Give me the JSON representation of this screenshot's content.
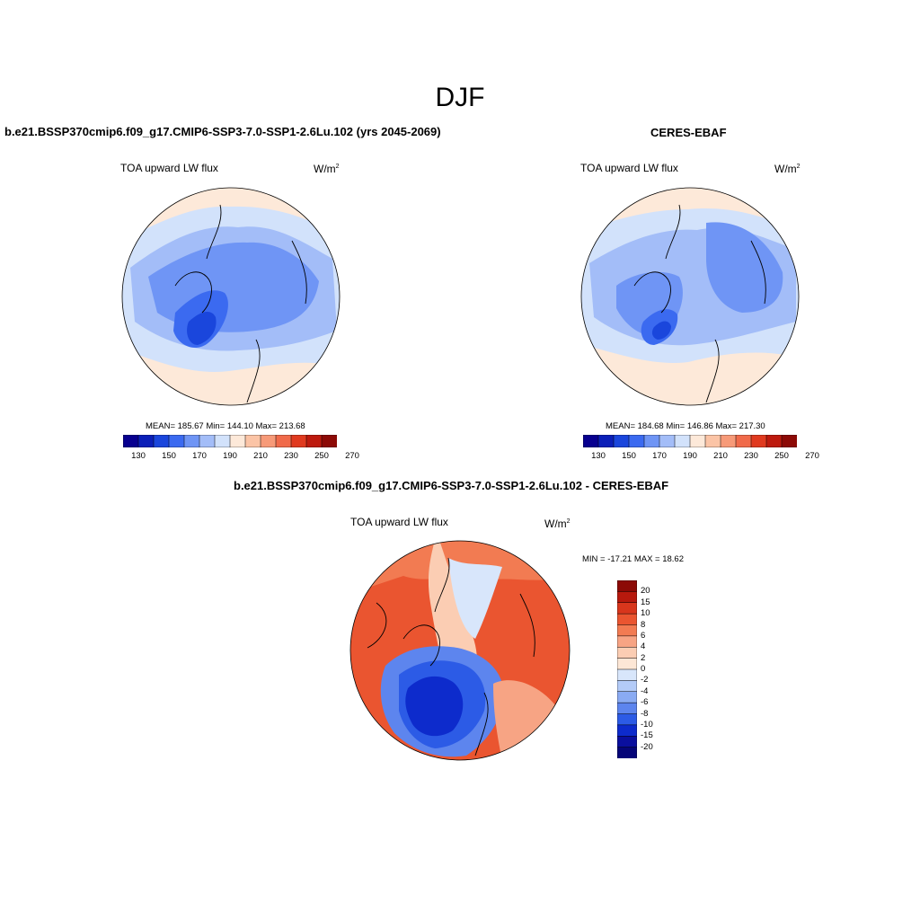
{
  "figure": {
    "title": "DJF"
  },
  "panels": [
    {
      "title": "b.e21.BSSP370cmip6.f09_g17.CMIP6-SSP3-7.0-SSP1-2.6Lu.102 (yrs 2045-2069)",
      "variable": "TOA upward LW flux",
      "units_base": "W/m",
      "units_sup": "2",
      "stats": "MEAN= 185.67  Min= 144.10  Max= 213.68",
      "colorbar_ticks": [
        "130",
        "150",
        "170",
        "190",
        "210",
        "230",
        "250",
        "270"
      ]
    },
    {
      "title": "CERES-EBAF",
      "variable": "TOA upward LW flux",
      "units_base": "W/m",
      "units_sup": "2",
      "stats": "MEAN= 184.68  Min= 146.86  Max= 217.30",
      "colorbar_ticks": [
        "130",
        "150",
        "170",
        "190",
        "210",
        "230",
        "250",
        "270"
      ]
    },
    {
      "title": "b.e21.BSSP370cmip6.f09_g17.CMIP6-SSP3-7.0-SSP1-2.6Lu.102 - CERES-EBAF",
      "variable": "TOA upward LW flux",
      "units_base": "W/m",
      "units_sup": "2",
      "stats": "MIN = -17.21 MAX =  18.62",
      "colorbar_ticks": [
        "20",
        "15",
        "10",
        "8",
        "6",
        "4",
        "2",
        "0",
        "-2",
        "-4",
        "-6",
        "-8",
        "-10",
        "-15",
        "-20"
      ]
    }
  ],
  "colorbars": {
    "absolute_colors": [
      "#08008f",
      "#0b1fb8",
      "#1a46dc",
      "#3b6af0",
      "#6f95f5",
      "#a3bdf8",
      "#d2e2fb",
      "#fde9d9",
      "#fbc4a6",
      "#f79a78",
      "#f06a4a",
      "#e03a1f",
      "#bd1a0e",
      "#8c0a06"
    ],
    "difference_colors": [
      "#8c0a06",
      "#b7190d",
      "#d8361c",
      "#ea5530",
      "#f27b52",
      "#f7a484",
      "#fbcdb3",
      "#fde7d6",
      "#d8e6fb",
      "#b3cbf8",
      "#8aabf3",
      "#5d85ee",
      "#2c5be6",
      "#0d2bcc",
      "#0a0f9e",
      "#050578"
    ]
  }
}
